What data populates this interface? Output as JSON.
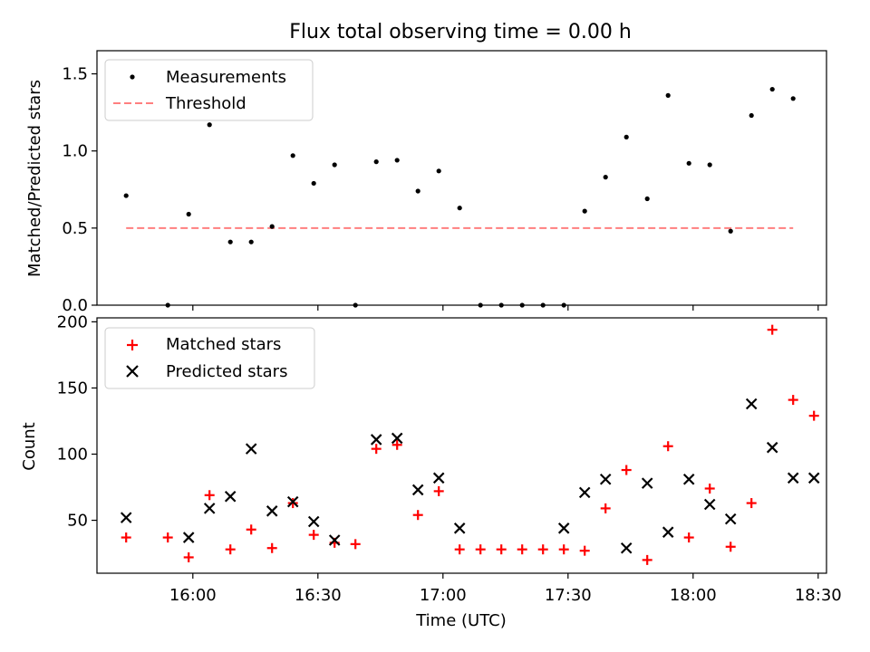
{
  "chart_data": [
    {
      "type": "scatter",
      "title": "Flux total observing time = 0.00 h",
      "ylabel": "Matched/Predicted stars",
      "ylim": [
        0,
        1.65
      ],
      "xlim": [
        "15:37",
        "18:32"
      ],
      "yticks": [
        0.0,
        0.5,
        1.0,
        1.5
      ],
      "ytick_labels": [
        "0.0",
        "0.5",
        "1.0",
        "1.5"
      ],
      "legend_position": "upper-left",
      "series": [
        {
          "name": "Measurements",
          "marker": "dot",
          "color": "#000000",
          "x": [
            "15:44",
            "15:54",
            "15:59",
            "16:04",
            "16:09",
            "16:14",
            "16:19",
            "16:24",
            "16:29",
            "16:34",
            "16:39",
            "16:44",
            "16:49",
            "16:54",
            "16:59",
            "17:04",
            "17:09",
            "17:14",
            "17:19",
            "17:24",
            "17:29",
            "17:34",
            "17:39",
            "17:44",
            "17:49",
            "17:54",
            "17:59",
            "18:04",
            "18:09",
            "18:14",
            "18:19",
            "18:24"
          ],
          "y": [
            0.71,
            0.0,
            0.59,
            1.17,
            0.41,
            0.41,
            0.51,
            0.97,
            0.79,
            0.91,
            0.0,
            0.93,
            0.94,
            0.74,
            0.87,
            0.63,
            0.0,
            0.0,
            0.0,
            0.0,
            0.0,
            0.61,
            0.83,
            1.09,
            0.69,
            1.36,
            0.92,
            0.91,
            0.48,
            1.23,
            1.4,
            1.34
          ]
        },
        {
          "name": "Threshold",
          "style": "dashed",
          "color": "#ff7f7f",
          "x": [
            "15:44",
            "18:24"
          ],
          "y": [
            0.5,
            0.5
          ]
        }
      ]
    },
    {
      "type": "scatter",
      "xlabel": "Time (UTC)",
      "ylabel": "Count",
      "ylim": [
        10,
        203
      ],
      "xlim": [
        "15:37",
        "18:32"
      ],
      "yticks": [
        50,
        100,
        150,
        200
      ],
      "ytick_labels": [
        "50",
        "100",
        "150",
        "200"
      ],
      "xticks": [
        "16:00",
        "16:30",
        "17:00",
        "17:30",
        "18:00",
        "18:30"
      ],
      "legend_position": "upper-left",
      "series": [
        {
          "name": "Matched stars",
          "marker": "plus",
          "color": "#ff0000",
          "x": [
            "15:44",
            "15:54",
            "15:59",
            "16:04",
            "16:09",
            "16:14",
            "16:19",
            "16:24",
            "16:29",
            "16:34",
            "16:39",
            "16:44",
            "16:49",
            "16:54",
            "16:59",
            "17:04",
            "17:09",
            "17:14",
            "17:19",
            "17:24",
            "17:29",
            "17:34",
            "17:39",
            "17:44",
            "17:49",
            "17:54",
            "17:59",
            "18:04",
            "18:09",
            "18:14",
            "18:19",
            "18:24",
            "18:29"
          ],
          "y": [
            37,
            37,
            22,
            69,
            28,
            43,
            29,
            63,
            39,
            33,
            32,
            104,
            107,
            54,
            72,
            28,
            28,
            28,
            28,
            28,
            28,
            27,
            59,
            88,
            20,
            106,
            37,
            74,
            30,
            63,
            194,
            141,
            129
          ]
        },
        {
          "name": "Predicted stars",
          "marker": "x",
          "color": "#000000",
          "x": [
            "15:44",
            "15:59",
            "16:04",
            "16:09",
            "16:14",
            "16:19",
            "16:24",
            "16:29",
            "16:34",
            "16:44",
            "16:49",
            "16:54",
            "16:59",
            "17:04",
            "17:29",
            "17:34",
            "17:39",
            "17:44",
            "17:49",
            "17:54",
            "17:59",
            "18:04",
            "18:09",
            "18:14",
            "18:19",
            "18:24",
            "18:29"
          ],
          "y": [
            52,
            37,
            59,
            68,
            104,
            57,
            64,
            49,
            35,
            111,
            112,
            73,
            82,
            44,
            44,
            71,
            81,
            29,
            78,
            41,
            81,
            62,
            51,
            138,
            105,
            82,
            82
          ]
        }
      ]
    }
  ]
}
